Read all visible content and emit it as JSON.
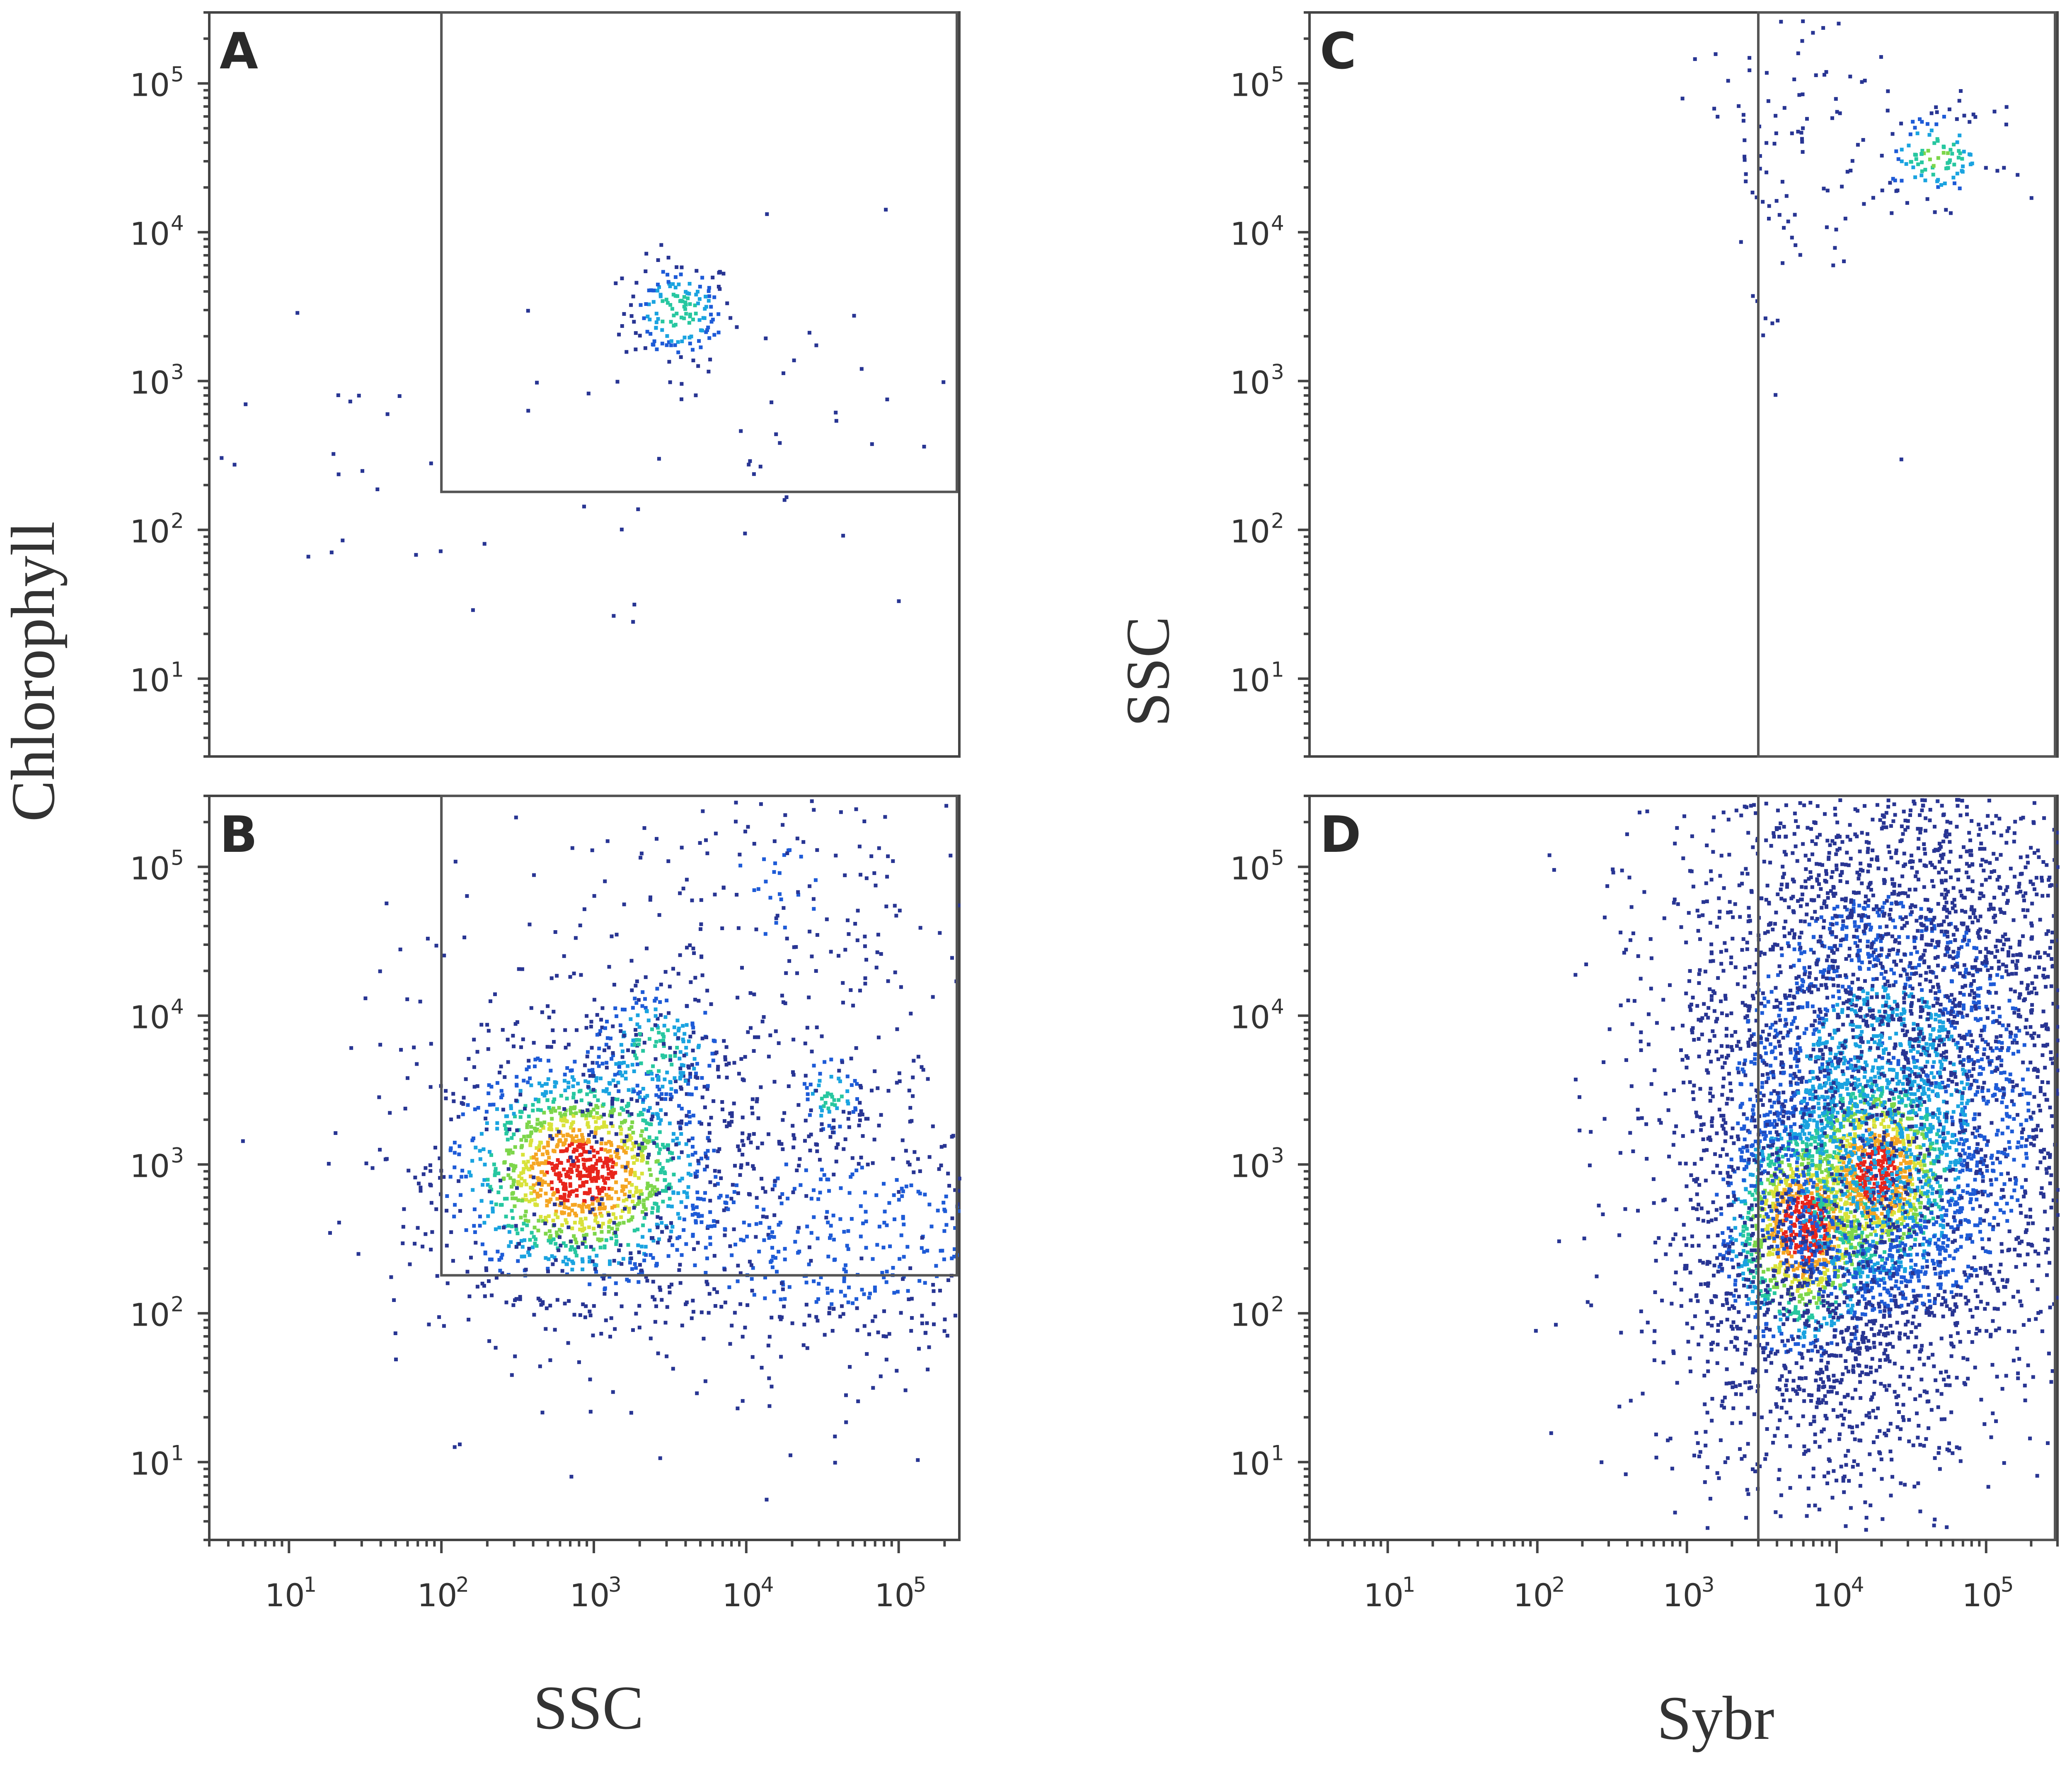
{
  "colors": {
    "density_scale": [
      "#283593",
      "#1e5bd7",
      "#1aa3e0",
      "#27c7a0",
      "#7dd64b",
      "#d8e23a",
      "#f5a623",
      "#e8251b"
    ],
    "frame": "#444444",
    "gate": "#555555"
  },
  "labels": {
    "y_left": "Chlorophyll",
    "y_right": "SSC",
    "x_left": "SSC",
    "x_right": "Sybr"
  },
  "chart_data": [
    {
      "panel": "A",
      "type": "scatter",
      "title": "",
      "xlabel": "SSC",
      "ylabel": "Chlorophyll",
      "xscale": "log",
      "yscale": "log",
      "xlim": [
        3,
        250000
      ],
      "ylim": [
        3,
        300000
      ],
      "x_ticks": [
        "10",
        "10",
        "10",
        "10",
        "10"
      ],
      "x_tick_exps": [
        "1",
        "2",
        "3",
        "4",
        "5"
      ],
      "y_ticks": [
        "10",
        "10",
        "10",
        "10",
        "10"
      ],
      "y_tick_exps": [
        "1",
        "2",
        "3",
        "4",
        "5"
      ],
      "gate": {
        "x": [
          100,
          250000
        ],
        "y": [
          180,
          300000
        ]
      },
      "populations": [
        {
          "x": 3500,
          "y": 3000,
          "spread_x": 0.09,
          "spread_y": 0.09,
          "n": 160,
          "peak": 0.5
        },
        {
          "x": 15000,
          "y": 600,
          "spread_x": 0.45,
          "spread_y": 0.3,
          "n": 45,
          "peak": 0.05
        },
        {
          "x": 30,
          "y": 250,
          "spread_x": 0.5,
          "spread_y": 0.3,
          "n": 28,
          "peak": 0.05
        }
      ],
      "show_x_axis": false
    },
    {
      "panel": "B",
      "type": "scatter",
      "title": "",
      "xlabel": "SSC",
      "ylabel": "Chlorophyll",
      "xscale": "log",
      "yscale": "log",
      "xlim": [
        3,
        250000
      ],
      "ylim": [
        3,
        300000
      ],
      "x_ticks": [
        "10",
        "10",
        "10",
        "10",
        "10"
      ],
      "x_tick_exps": [
        "1",
        "2",
        "3",
        "4",
        "5"
      ],
      "y_ticks": [
        "10",
        "10",
        "10",
        "10",
        "10"
      ],
      "y_tick_exps": [
        "1",
        "2",
        "3",
        "4",
        "5"
      ],
      "gate": {
        "x": [
          100,
          250000
        ],
        "y": [
          180,
          300000
        ]
      },
      "populations": [
        {
          "x": 800,
          "y": 900,
          "spread_x": 0.22,
          "spread_y": 0.2,
          "n": 1400,
          "peak": 1.0
        },
        {
          "x": 2500,
          "y": 6000,
          "spread_x": 0.13,
          "spread_y": 0.13,
          "n": 220,
          "peak": 0.45
        },
        {
          "x": 35000,
          "y": 3000,
          "spread_x": 0.06,
          "spread_y": 0.08,
          "n": 70,
          "peak": 0.45
        },
        {
          "x": 30000,
          "y": 350,
          "spread_x": 0.5,
          "spread_y": 0.25,
          "n": 650,
          "peak": 0.2
        },
        {
          "x": 15000,
          "y": 70000,
          "spread_x": 0.25,
          "spread_y": 0.25,
          "n": 120,
          "peak": 0.15
        },
        {
          "x": 5000,
          "y": 3000,
          "spread_x": 0.6,
          "spread_y": 0.5,
          "n": 350,
          "peak": 0.1
        }
      ],
      "show_x_axis": true
    },
    {
      "panel": "C",
      "type": "scatter",
      "title": "",
      "xlabel": "Sybr",
      "ylabel": "SSC",
      "xscale": "log",
      "yscale": "log",
      "xlim": [
        3,
        300000
      ],
      "ylim": [
        3,
        300000
      ],
      "x_ticks": [
        "10",
        "10",
        "10",
        "10",
        "10"
      ],
      "x_tick_exps": [
        "1",
        "2",
        "3",
        "4",
        "5"
      ],
      "y_ticks": [
        "10",
        "10",
        "10",
        "10",
        "10"
      ],
      "y_tick_exps": [
        "1",
        "2",
        "3",
        "4",
        "5"
      ],
      "gate": {
        "x": [
          3000,
          300000
        ],
        "y": [
          3,
          300000
        ]
      },
      "populations": [
        {
          "x": 45000,
          "y": 33000,
          "spread_x": 0.1,
          "spread_y": 0.08,
          "n": 120,
          "peak": 0.55
        },
        {
          "x": 4500,
          "y": 40000,
          "spread_x": 0.15,
          "spread_y": 0.35,
          "n": 110,
          "peak": 0.05
        }
      ],
      "show_x_axis": false
    },
    {
      "panel": "D",
      "type": "scatter",
      "title": "",
      "xlabel": "Sybr",
      "ylabel": "SSC",
      "xscale": "log",
      "yscale": "log",
      "xlim": [
        3,
        300000
      ],
      "ylim": [
        3,
        300000
      ],
      "x_ticks": [
        "10",
        "10",
        "10",
        "10",
        "10"
      ],
      "x_tick_exps": [
        "1",
        "2",
        "3",
        "4",
        "5"
      ],
      "y_ticks": [
        "10",
        "10",
        "10",
        "10",
        "10"
      ],
      "y_tick_exps": [
        "1",
        "2",
        "3",
        "4",
        "5"
      ],
      "gate": {
        "x": [
          3000,
          300000
        ],
        "y": [
          3,
          300000
        ]
      },
      "populations": [
        {
          "x": 6000,
          "y": 380,
          "spread_x": 0.15,
          "spread_y": 0.22,
          "n": 1300,
          "peak": 1.0
        },
        {
          "x": 18000,
          "y": 900,
          "spread_x": 0.17,
          "spread_y": 0.22,
          "n": 1300,
          "peak": 0.95
        },
        {
          "x": 20000,
          "y": 2500,
          "spread_x": 0.35,
          "spread_y": 0.5,
          "n": 2600,
          "peak": 0.35
        },
        {
          "x": 30000,
          "y": 20000,
          "spread_x": 0.4,
          "spread_y": 0.45,
          "n": 1800,
          "peak": 0.12
        },
        {
          "x": 9000,
          "y": 60,
          "spread_x": 0.3,
          "spread_y": 0.3,
          "n": 600,
          "peak": 0.12
        }
      ],
      "show_x_axis": true
    }
  ]
}
